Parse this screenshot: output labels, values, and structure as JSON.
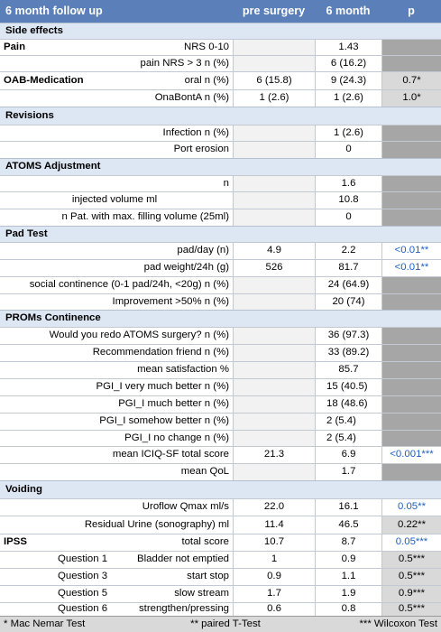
{
  "header": {
    "title": "6 month follow up",
    "col_pre": "pre surgery",
    "col_m6": "6 month",
    "col_p": "p"
  },
  "sections": {
    "side_effects": "Side effects",
    "revisions": "Revisions",
    "atoms": "ATOMS Adjustment",
    "pad": "Pad Test",
    "proms": "PROMs Continence",
    "voiding": "Voiding"
  },
  "subheads": {
    "pain": "Pain",
    "oab": "OAB-Medication",
    "ipss": "IPSS"
  },
  "rows": {
    "nrs": {
      "label": "NRS 0-10",
      "pre": "",
      "m6": "1.43",
      "p": ""
    },
    "pain_nrs3": {
      "label": "pain NRS > 3 n (%)",
      "pre": "",
      "m6": "6 (16.2)",
      "p": ""
    },
    "oral": {
      "label": "oral n (%)",
      "pre": "6 (15.8)",
      "m6": "9 (24.3)",
      "p": "0.7*"
    },
    "onabont": {
      "label": "OnaBontA n (%)",
      "pre": "1 (2.6)",
      "m6": "1 (2.6)",
      "p": "1.0*"
    },
    "infection": {
      "label": "Infection n (%)",
      "pre": "",
      "m6": "1 (2.6)",
      "p": ""
    },
    "port": {
      "label": "Port erosion",
      "pre": "",
      "m6": "0",
      "p": ""
    },
    "n": {
      "label": "n",
      "pre": "",
      "m6": "1.6",
      "p": ""
    },
    "injected": {
      "label": "injected volume ml",
      "pre": "",
      "m6": "10.8",
      "p": ""
    },
    "maxfill": {
      "label": "n Pat. with max. filling volume (25ml)",
      "pre": "",
      "m6": "0",
      "p": ""
    },
    "padday": {
      "label": "pad/day (n)",
      "pre": "4.9",
      "m6": "2.2",
      "p": "<0.01**"
    },
    "padweight": {
      "label": "pad weight/24h (g)",
      "pre": "526",
      "m6": "81.7",
      "p": "<0.01**"
    },
    "social": {
      "label": "social continence (0-1 pad/24h, <20g) n (%)",
      "pre": "",
      "m6": "24 (64.9)",
      "p": ""
    },
    "improve": {
      "label": "Improvement >50% n (%)",
      "pre": "",
      "m6": "20 (74)",
      "p": ""
    },
    "redo": {
      "label": "Would you redo ATOMS surgery? n (%)",
      "pre": "",
      "m6": "36 (97.3)",
      "p": ""
    },
    "recommend": {
      "label": "Recommendation friend n (%)",
      "pre": "",
      "m6": "33 (89.2)",
      "p": ""
    },
    "satisf": {
      "label": "mean satisfaction %",
      "pre": "",
      "m6": "85.7",
      "p": ""
    },
    "pgi_vmb": {
      "label": "PGI_I very much better n (%)",
      "pre": "",
      "m6": "15 (40.5)",
      "p": ""
    },
    "pgi_mb": {
      "label": "PGI_I  much better n (%)",
      "pre": "",
      "m6": "18 (48.6)",
      "p": ""
    },
    "pgi_sb": {
      "label": "PGI_I somehow better n (%)",
      "pre": "",
      "m6": "2 (5.4)",
      "p": ""
    },
    "pgi_nc": {
      "label": "PGI_I no change n (%)",
      "pre": "",
      "m6": "2 (5.4)",
      "p": ""
    },
    "iciq": {
      "label": "mean ICIQ-SF total score",
      "pre": "21.3",
      "m6": "6.9",
      "p": "<0.001***"
    },
    "qol": {
      "label": "mean QoL",
      "pre": "",
      "m6": "1.7",
      "p": ""
    },
    "uroflow": {
      "label": "Uroflow Qmax ml/s",
      "pre": "22.0",
      "m6": "16.1",
      "p": "0.05**"
    },
    "residual": {
      "label": "Residual Urine (sonography) ml",
      "pre": "11.4",
      "m6": "46.5",
      "p": "0.22**"
    },
    "ipss_total": {
      "label": "total score",
      "pre": "10.7",
      "m6": "8.7",
      "p": "0.05***"
    },
    "q1": {
      "q": "Question 1",
      "label": "Bladder not emptied",
      "pre": "1",
      "m6": "0.9",
      "p": "0.5***"
    },
    "q3": {
      "q": "Question 3",
      "label": "start stop",
      "pre": "0.9",
      "m6": "1.1",
      "p": "0.5***"
    },
    "q5": {
      "q": "Question 5",
      "label": "slow stream",
      "pre": "1.7",
      "m6": "1.9",
      "p": "0.9***"
    },
    "q6": {
      "q": "Question 6",
      "label": "strengthen/pressing",
      "pre": "0.6",
      "m6": "0.8",
      "p": "0.5***"
    }
  },
  "footer": {
    "note1": "* Mac Nemar Test",
    "note2": "** paired T-Test",
    "note3": "*** Wilcoxon Test"
  },
  "colors": {
    "header": "#5b7fb8",
    "section": "#dde6f3",
    "p_fill": "#a6a6a6",
    "p_text_blue": "#1f5fbd"
  }
}
